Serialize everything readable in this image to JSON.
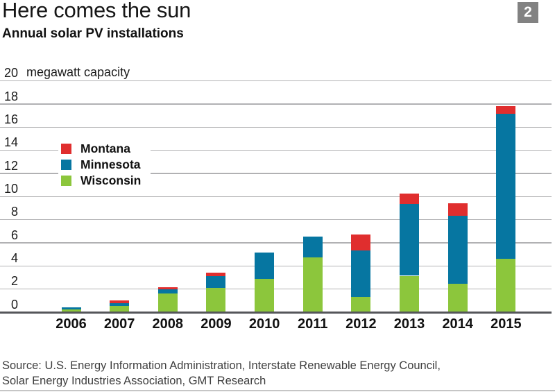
{
  "header": {
    "title": "Here comes the sun",
    "subtitle": "Annual solar PV installations",
    "badge": "2"
  },
  "footer": {
    "source_line1": "Source: U.S. Energy Information Administration, Interstate Renewable Energy Council,",
    "source_line2": "Solar Energy Industries Association, GMT Research"
  },
  "colors": {
    "wisconsin_green": "#8cc63c",
    "minnesota_blue": "#0676a1",
    "montana_red": "#e02e2e",
    "gridline": "#b1b1b3",
    "baseline": "#55565a",
    "badge_gray": "#828282",
    "bottom_border": "#c6c6c6"
  },
  "chart_data": {
    "type": "bar",
    "stacked": true,
    "title": "Here comes the sun",
    "subtitle": "Annual solar PV installations",
    "unit_label": "megawatt capacity",
    "categories": [
      "2006",
      "2007",
      "2008",
      "2009",
      "2010",
      "2011",
      "2012",
      "2013",
      "2014",
      "2015"
    ],
    "series": [
      {
        "name": "Wisconsin",
        "color": "#8cc63c",
        "values": [
          0.25,
          0.55,
          1.6,
          2.1,
          2.9,
          4.75,
          1.3,
          3.15,
          2.45,
          4.6
        ]
      },
      {
        "name": "Minnesota",
        "color": "#0676a1",
        "values": [
          0.15,
          0.25,
          0.4,
          1.0,
          2.25,
          1.8,
          4.05,
          6.2,
          5.9,
          12.55
        ]
      },
      {
        "name": "Montana",
        "color": "#e02e2e",
        "values": [
          0,
          0.25,
          0.15,
          0.3,
          0,
          0,
          1.4,
          0.9,
          1.1,
          0.65
        ]
      }
    ],
    "legend_order": [
      "Montana",
      "Minnesota",
      "Wisconsin"
    ],
    "legend_position": "upper-left-inside",
    "xlabel": "",
    "ylabel": "megawatt capacity",
    "ylim": [
      0,
      20
    ],
    "ytick_step": 2,
    "grid": true
  }
}
